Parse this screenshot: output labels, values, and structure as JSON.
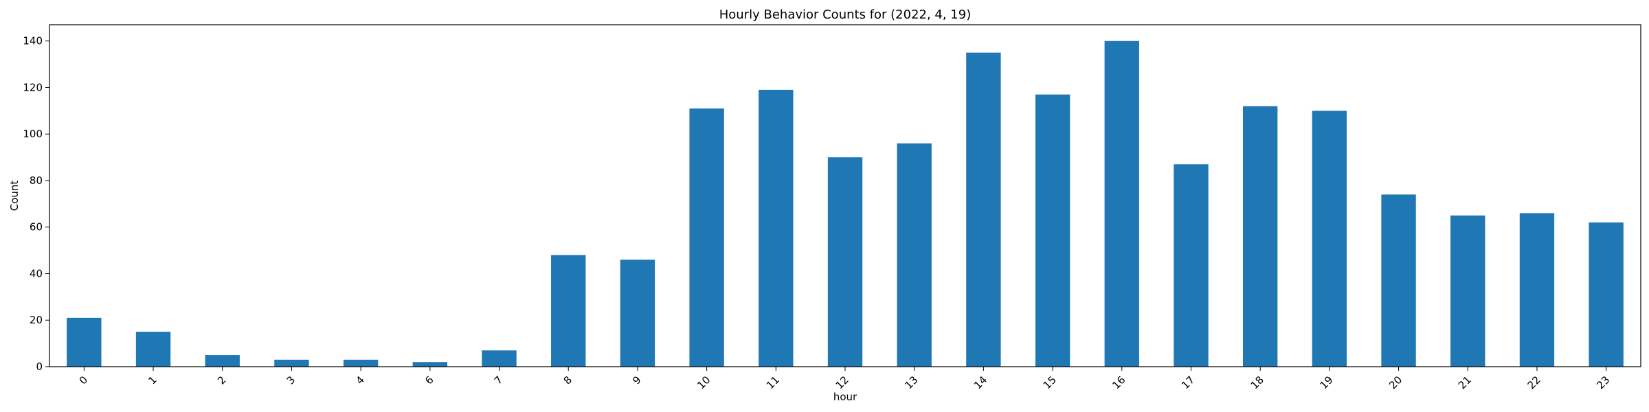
{
  "chart_data": {
    "type": "bar",
    "title": "Hourly Behavior Counts for (2022, 4, 19)",
    "xlabel": "hour",
    "ylabel": "Count",
    "categories": [
      "0",
      "1",
      "2",
      "3",
      "4",
      "6",
      "7",
      "8",
      "9",
      "10",
      "11",
      "12",
      "13",
      "14",
      "15",
      "16",
      "17",
      "18",
      "19",
      "20",
      "21",
      "22",
      "23"
    ],
    "values": [
      21,
      15,
      5,
      3,
      3,
      2,
      7,
      48,
      46,
      111,
      119,
      90,
      96,
      135,
      117,
      140,
      87,
      112,
      110,
      74,
      65,
      66,
      62
    ],
    "ylim": [
      0,
      147
    ],
    "yticks": [
      0,
      20,
      40,
      60,
      80,
      100,
      120,
      140
    ],
    "bar_color": "#1f77b4",
    "grid": false,
    "legend": "none"
  }
}
